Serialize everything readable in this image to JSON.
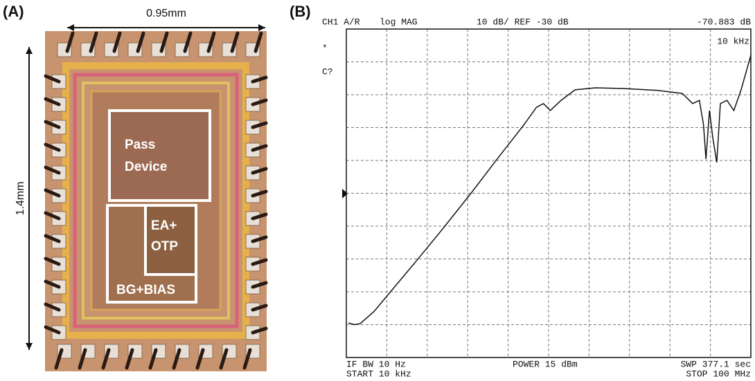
{
  "panel_a": {
    "label": "(A)",
    "width_label": "0.95mm",
    "height_label": "1.4mm",
    "blocks": [
      "Pass",
      "Device",
      "EA+",
      "OTP",
      "BG+BIAS"
    ]
  },
  "chart_data": {
    "type": "line",
    "label": "(B)",
    "header": [
      "CH1 A/R",
      "log MAG",
      "10 dB/ REF -30 dB",
      "-70.883 dB"
    ],
    "annotations": [
      "*",
      "C?",
      "10 kHz"
    ],
    "footer": [
      "IF BW 10 Hz",
      "START  10 kHz",
      "POWER  15 dBm",
      "SWP  377.1 sec",
      "STOP  100 MHz"
    ],
    "log_x": true,
    "xlim": [
      10000,
      100000000
    ],
    "ylim": [
      -80,
      20
    ],
    "color": "#111111",
    "x": [
      10500,
      12000,
      13700,
      18800,
      30000,
      48000,
      91000,
      171000,
      320000,
      560000,
      760000,
      890000,
      1040000,
      1330000,
      1830000,
      2900000,
      5500000,
      12000000,
      21000000,
      26600000,
      31000000,
      34000000,
      36000000,
      39000000,
      42000000,
      46000000,
      50000000,
      58000000,
      68000000,
      80000000,
      100000000
    ],
    "values": [
      -69.5,
      -70,
      -69.7,
      -66,
      -58.5,
      -51,
      -40.6,
      -30,
      -19,
      -9.5,
      -3.8,
      -2.7,
      -4.8,
      -1.7,
      1.5,
      2.1,
      1.9,
      1.3,
      0.4,
      -2.7,
      -1.7,
      -9,
      -19.6,
      -4.8,
      -13,
      -20.6,
      -2.7,
      -1.7,
      -4.8,
      1.5,
      12
    ]
  }
}
